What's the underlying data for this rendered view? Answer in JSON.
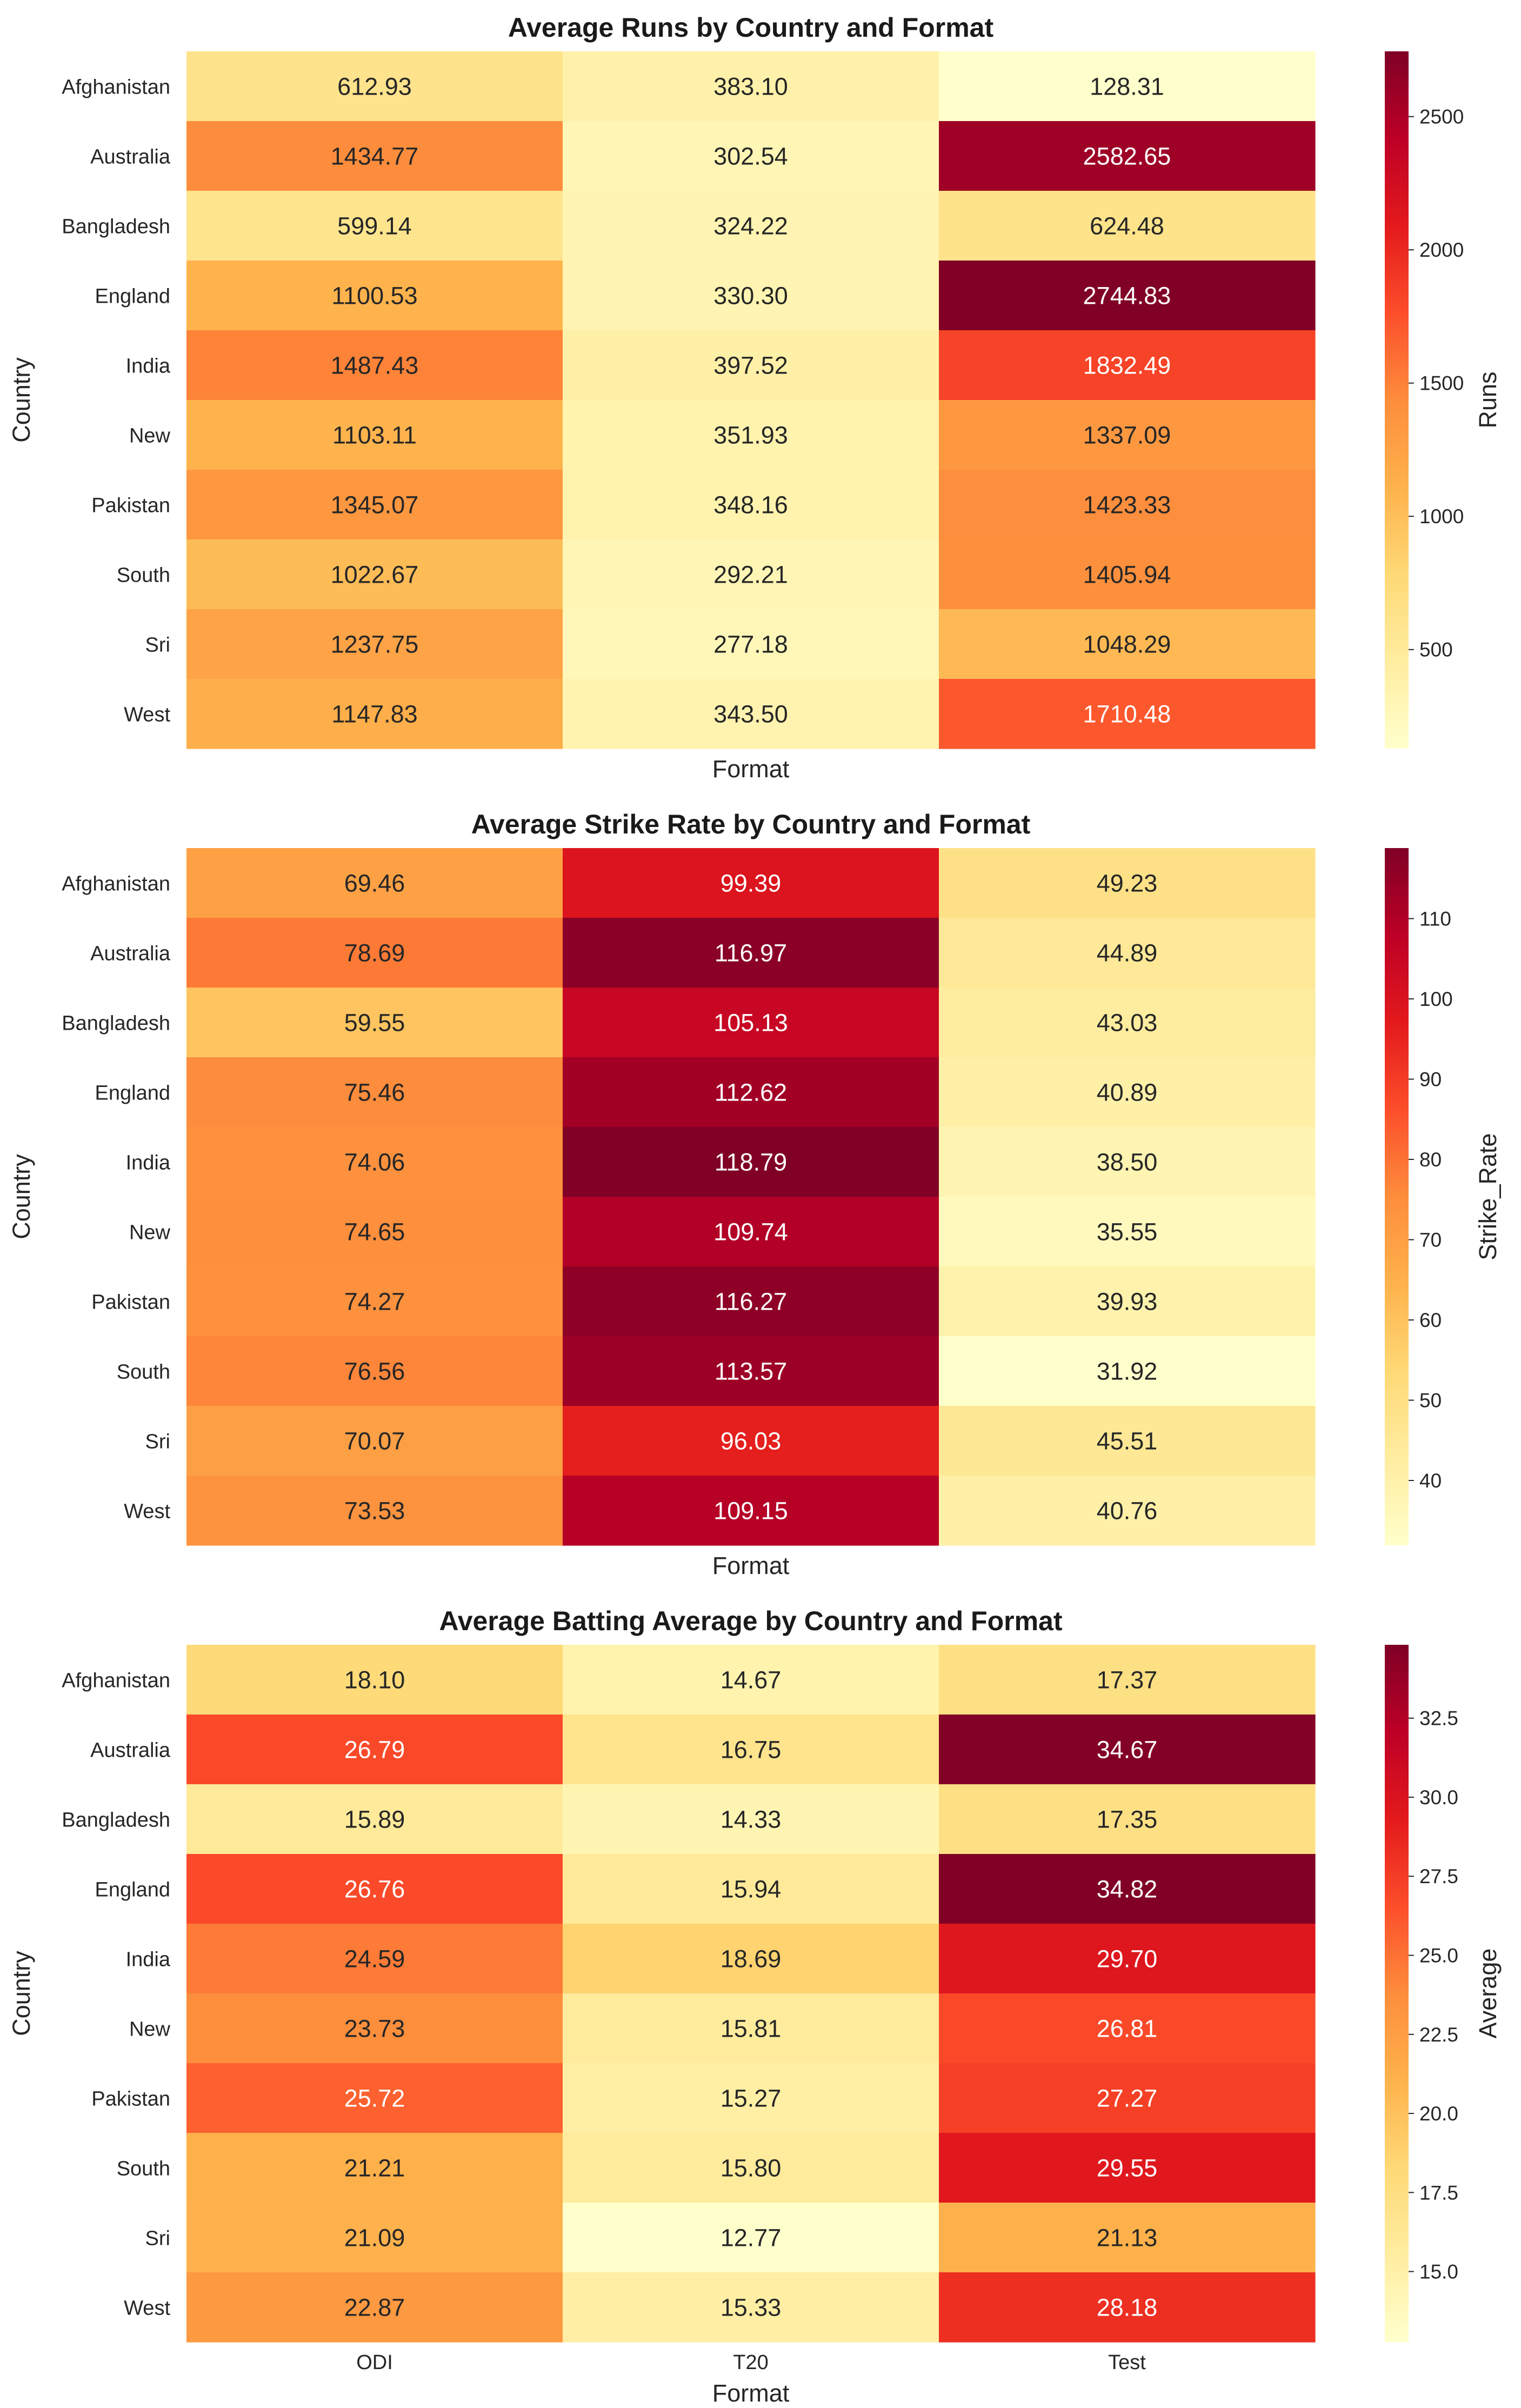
{
  "chart_data": [
    {
      "type": "heatmap",
      "title": "Average Runs by Country and Format",
      "xlabel": "Format",
      "ylabel": "Country",
      "colorbar_label": "Runs",
      "x_tick_labels_shown": false,
      "categories_x": [
        "ODI",
        "T20",
        "Test"
      ],
      "categories_y": [
        "Afghanistan",
        "Australia",
        "Bangladesh",
        "England",
        "India",
        "New",
        "Pakistan",
        "South",
        "Sri",
        "West"
      ],
      "values": [
        [
          612.93,
          383.1,
          128.31
        ],
        [
          1434.77,
          302.54,
          2582.65
        ],
        [
          599.14,
          324.22,
          624.48
        ],
        [
          1100.53,
          330.3,
          2744.83
        ],
        [
          1487.43,
          397.52,
          1832.49
        ],
        [
          1103.11,
          351.93,
          1337.09
        ],
        [
          1345.07,
          348.16,
          1423.33
        ],
        [
          1022.67,
          292.21,
          1405.94
        ],
        [
          1237.75,
          277.18,
          1048.29
        ],
        [
          1147.83,
          343.5,
          1710.48
        ]
      ],
      "value_labels": [
        [
          "612.93",
          "383.10",
          "128.31"
        ],
        [
          "1434.77",
          "302.54",
          "2582.65"
        ],
        [
          "599.14",
          "324.22",
          "624.48"
        ],
        [
          "1100.53",
          "330.30",
          "2744.83"
        ],
        [
          "1487.43",
          "397.52",
          "1832.49"
        ],
        [
          "1103.11",
          "351.93",
          "1337.09"
        ],
        [
          "1345.07",
          "348.16",
          "1423.33"
        ],
        [
          "1022.67",
          "292.21",
          "1405.94"
        ],
        [
          "1237.75",
          "277.18",
          "1048.29"
        ],
        [
          "1147.83",
          "343.50",
          "1710.48"
        ]
      ],
      "vmin": 128.31,
      "vmax": 2744.83,
      "colorbar_ticks": [
        500,
        1000,
        1500,
        2000,
        2500
      ],
      "colorbar_tick_labels": [
        "500",
        "1000",
        "1500",
        "2000",
        "2500"
      ],
      "colormap": "YlOrRd"
    },
    {
      "type": "heatmap",
      "title": "Average Strike Rate by Country and Format",
      "xlabel": "Format",
      "ylabel": "Country",
      "colorbar_label": "Strike_Rate",
      "x_tick_labels_shown": false,
      "categories_x": [
        "ODI",
        "T20",
        "Test"
      ],
      "categories_y": [
        "Afghanistan",
        "Australia",
        "Bangladesh",
        "England",
        "India",
        "New",
        "Pakistan",
        "South",
        "Sri",
        "West"
      ],
      "values": [
        [
          69.46,
          99.39,
          49.23
        ],
        [
          78.69,
          116.97,
          44.89
        ],
        [
          59.55,
          105.13,
          43.03
        ],
        [
          75.46,
          112.62,
          40.89
        ],
        [
          74.06,
          118.79,
          38.5
        ],
        [
          74.65,
          109.74,
          35.55
        ],
        [
          74.27,
          116.27,
          39.93
        ],
        [
          76.56,
          113.57,
          31.92
        ],
        [
          70.07,
          96.03,
          45.51
        ],
        [
          73.53,
          109.15,
          40.76
        ]
      ],
      "value_labels": [
        [
          "69.46",
          "99.39",
          "49.23"
        ],
        [
          "78.69",
          "116.97",
          "44.89"
        ],
        [
          "59.55",
          "105.13",
          "43.03"
        ],
        [
          "75.46",
          "112.62",
          "40.89"
        ],
        [
          "74.06",
          "118.79",
          "38.50"
        ],
        [
          "74.65",
          "109.74",
          "35.55"
        ],
        [
          "74.27",
          "116.27",
          "39.93"
        ],
        [
          "76.56",
          "113.57",
          "31.92"
        ],
        [
          "70.07",
          "96.03",
          "45.51"
        ],
        [
          "73.53",
          "109.15",
          "40.76"
        ]
      ],
      "vmin": 31.92,
      "vmax": 118.79,
      "colorbar_ticks": [
        40,
        50,
        60,
        70,
        80,
        90,
        100,
        110
      ],
      "colorbar_tick_labels": [
        "40",
        "50",
        "60",
        "70",
        "80",
        "90",
        "100",
        "110"
      ],
      "colormap": "YlOrRd"
    },
    {
      "type": "heatmap",
      "title": "Average Batting Average by Country and Format",
      "xlabel": "Format",
      "ylabel": "Country",
      "colorbar_label": "Average",
      "x_tick_labels_shown": true,
      "categories_x": [
        "ODI",
        "T20",
        "Test"
      ],
      "categories_y": [
        "Afghanistan",
        "Australia",
        "Bangladesh",
        "England",
        "India",
        "New",
        "Pakistan",
        "South",
        "Sri",
        "West"
      ],
      "values": [
        [
          18.1,
          14.67,
          17.37
        ],
        [
          26.79,
          16.75,
          34.67
        ],
        [
          15.89,
          14.33,
          17.35
        ],
        [
          26.76,
          15.94,
          34.82
        ],
        [
          24.59,
          18.69,
          29.7
        ],
        [
          23.73,
          15.81,
          26.81
        ],
        [
          25.72,
          15.27,
          27.27
        ],
        [
          21.21,
          15.8,
          29.55
        ],
        [
          21.09,
          12.77,
          21.13
        ],
        [
          22.87,
          15.33,
          28.18
        ]
      ],
      "value_labels": [
        [
          "18.10",
          "14.67",
          "17.37"
        ],
        [
          "26.79",
          "16.75",
          "34.67"
        ],
        [
          "15.89",
          "14.33",
          "17.35"
        ],
        [
          "26.76",
          "15.94",
          "34.82"
        ],
        [
          "24.59",
          "18.69",
          "29.70"
        ],
        [
          "23.73",
          "15.81",
          "26.81"
        ],
        [
          "25.72",
          "15.27",
          "27.27"
        ],
        [
          "21.21",
          "15.80",
          "29.55"
        ],
        [
          "21.09",
          "12.77",
          "21.13"
        ],
        [
          "22.87",
          "15.33",
          "28.18"
        ]
      ],
      "vmin": 12.77,
      "vmax": 34.82,
      "colorbar_ticks": [
        15.0,
        17.5,
        20.0,
        22.5,
        25.0,
        27.5,
        30.0,
        32.5
      ],
      "colorbar_tick_labels": [
        "15.0",
        "17.5",
        "20.0",
        "22.5",
        "25.0",
        "27.5",
        "30.0",
        "32.5"
      ],
      "colormap": "YlOrRd"
    }
  ]
}
